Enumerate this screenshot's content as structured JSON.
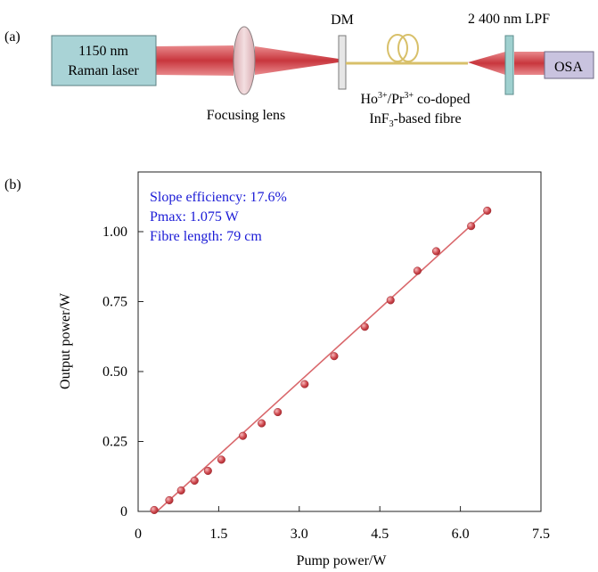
{
  "panel_a": {
    "panel_label": "(a)",
    "laser_label_line1": "1150 nm",
    "laser_label_line2": "Raman laser",
    "lens_label": "Focusing lens",
    "dm_label": "DM",
    "lpf_label": "2 400 nm LPF",
    "osa_label": "OSA",
    "fibre_label_line1_ions": "Ho",
    "fibre_label_line1_sup1": "3+",
    "fibre_label_line1_mid": "/Pr",
    "fibre_label_line1_sup2": "3+",
    "fibre_label_line1_rest": " co-doped",
    "fibre_label_line2_a": "InF",
    "fibre_label_line2_sub": "3",
    "fibre_label_line2_b": "-based fibre",
    "colors": {
      "laser_box": "#a9d3d6",
      "osa_box": "#c9c3df",
      "beam": "#d9545a",
      "fibre": "#d8c06a",
      "filter": "#9fd0cf"
    }
  },
  "panel_b": {
    "panel_label": "(b)"
  },
  "chart_data": {
    "type": "scatter",
    "xlabel": "Pump power/W",
    "ylabel": "Output power/W",
    "xlim": [
      0,
      7.5
    ],
    "ylim": [
      0,
      1.15
    ],
    "x_ticks": [
      "0",
      "1.5",
      "3.0",
      "4.5",
      "6.0",
      "7.5"
    ],
    "y_ticks": [
      "0",
      "0.25",
      "0.50",
      "0.75",
      "1.00"
    ],
    "annotations": [
      "Slope efficiency: 17.6%",
      "Pmax: 1.075 W",
      "Fibre length: 79 cm"
    ],
    "series": [
      {
        "x": [
          0.3,
          0.58,
          0.8,
          1.05,
          1.3,
          1.55,
          1.95,
          2.3,
          2.6,
          3.1,
          3.65,
          4.22,
          4.7,
          5.2,
          5.55,
          6.2,
          6.5
        ],
        "values": [
          0.005,
          0.04,
          0.075,
          0.11,
          0.145,
          0.185,
          0.27,
          0.315,
          0.355,
          0.455,
          0.555,
          0.66,
          0.755,
          0.86,
          0.93,
          1.02,
          1.075
        ]
      }
    ],
    "fit_line": {
      "x": [
        0.35,
        6.5
      ],
      "y": [
        0.0,
        1.075
      ]
    },
    "colors": {
      "points": "#c9454a",
      "fit": "#d9676b",
      "annotation": "#1a1ad6"
    }
  }
}
